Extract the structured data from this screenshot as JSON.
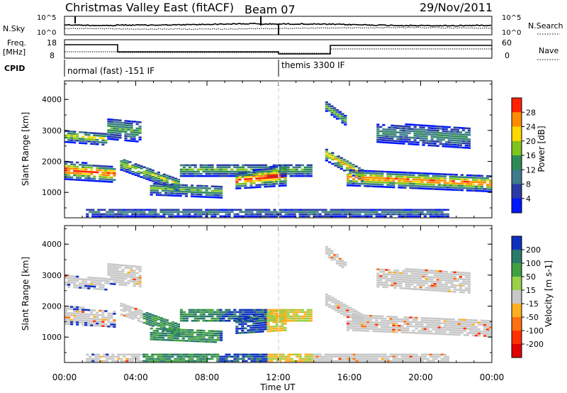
{
  "header": {
    "site": "Christmas Valley East (fitACF)",
    "beam": "Beam 07",
    "date": "29/Nov/2011"
  },
  "top_panels": {
    "nsky_label": "N.Sky",
    "nsky_ticks": [
      "10^5",
      "10^0"
    ],
    "nsearch_label": "N.Search",
    "nsearch_ticks": [
      "10^5",
      "10^0"
    ],
    "freq_label": "Freq.",
    "freq_unit": "[MHz]",
    "freq_ticks": [
      "18",
      "8"
    ],
    "nave_label": "Nave",
    "nave_ticks": [
      "60",
      "0"
    ],
    "cpid_label": "CPID",
    "cpid_modes": [
      "normal (fast) -151 IF",
      "themis 3300 IF"
    ]
  },
  "chart_data": [
    {
      "type": "heatmap",
      "panel": "power",
      "ylabel": "Slant Range [km]",
      "xlabel": "Time UT",
      "x_ticks": [
        "00:00",
        "04:00",
        "08:00",
        "12:00",
        "16:00",
        "20:00",
        "00:00"
      ],
      "y_ticks": [
        "1000",
        "2000",
        "3000",
        "4000"
      ],
      "ylim": [
        180,
        4600
      ],
      "colorbar": {
        "label": "Power [dB]",
        "ticks": [
          "4",
          "8",
          "12",
          "16",
          "20",
          "24",
          "28"
        ],
        "colors": [
          "#0018ff",
          "#2a3ba8",
          "#3e7c8c",
          "#2e8b57",
          "#7fc41c",
          "#ffd800",
          "#ff8c00",
          "#ff2200"
        ]
      }
    },
    {
      "type": "heatmap",
      "panel": "velocity",
      "ylabel": "Slant Range [km]",
      "xlabel": "Time UT",
      "x_ticks": [
        "00:00",
        "04:00",
        "08:00",
        "12:00",
        "16:00",
        "20:00",
        "00:00"
      ],
      "y_ticks": [
        "1000",
        "2000",
        "3000",
        "4000"
      ],
      "ylim": [
        180,
        4600
      ],
      "colorbar": {
        "label": "Velocity [m s-1]",
        "ticks": [
          "200",
          "100",
          "50",
          "15",
          "-15",
          "-50",
          "-100",
          "-200"
        ],
        "colors": [
          "#1030c0",
          "#2a7a6a",
          "#40a040",
          "#98d048",
          "#c8c8c8",
          "#ffb020",
          "#ff7010",
          "#ff3000",
          "#e00000"
        ]
      }
    }
  ],
  "x_axis_title": "Time UT"
}
